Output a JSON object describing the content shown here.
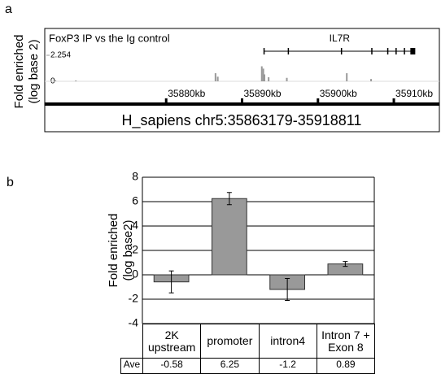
{
  "chart_data": [
    {
      "type": "genome-track",
      "panel_label": "a",
      "title": "FoxP3 IP vs the Ig control",
      "y_label": [
        "Fold enriched",
        "(log base 2)"
      ],
      "ylim": [
        0,
        2.254
      ],
      "yticks": [
        0,
        2.254
      ],
      "xlim": [
        35864,
        35916
      ],
      "xticks": [
        {
          "value": 35880,
          "label": "35880kb"
        },
        {
          "value": 35890,
          "label": "35890kb"
        },
        {
          "value": 35900,
          "label": "35900kb"
        },
        {
          "value": 35910,
          "label": "35910kb"
        }
      ],
      "x": [
        35865.4,
        35868.1,
        35886.5,
        35886.8,
        35892.6,
        35892.8,
        35892.95,
        35893.5,
        35895.9,
        35903.8,
        35907.0
      ],
      "values": [
        0.1,
        0.07,
        0.7,
        0.4,
        1.3,
        1.1,
        0.6,
        0.35,
        0.3,
        0.7,
        0.2
      ],
      "color": "#999999",
      "gene": {
        "name": "IL7R",
        "start": 35892.9,
        "end": 35912.8,
        "exons": [
          35892.9,
          35896.1,
          35903.1,
          35907.1,
          35909.2,
          35910.3,
          35911.4,
          35912.5
        ]
      },
      "region": "H_sapiens chr5:35863179-35918811"
    },
    {
      "type": "bar",
      "panel_label": "b",
      "y_label": [
        "Fold enriched",
        "(log base2)"
      ],
      "categories": [
        "2K upstream",
        "promoter",
        "intron4",
        "Intron 7 + Exon 8"
      ],
      "values": [
        -0.58,
        6.25,
        -1.2,
        0.89
      ],
      "errors": [
        0.9,
        0.5,
        0.9,
        0.2
      ],
      "color": "#999999",
      "ylim": [
        -4,
        8
      ],
      "yticks": [
        -4,
        -2,
        0,
        2,
        4,
        6,
        8
      ],
      "grid": true,
      "table_row_label": "Ave"
    }
  ]
}
